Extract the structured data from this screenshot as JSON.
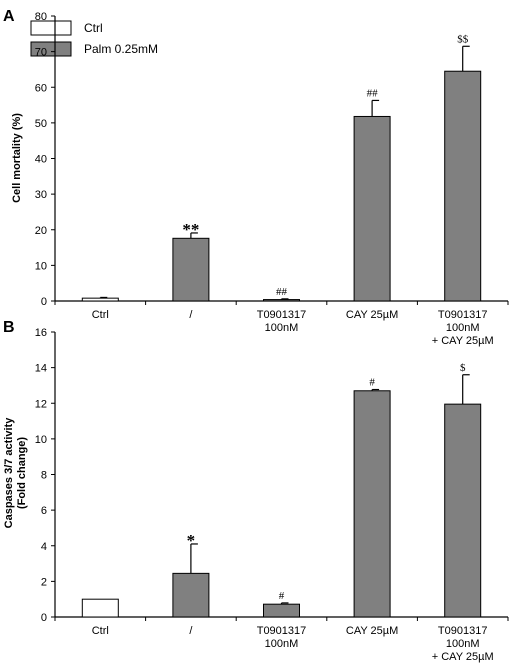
{
  "legend": {
    "items": [
      {
        "label": "Ctrl",
        "color": "#ffffff"
      },
      {
        "label": "Palm 0.25mM",
        "color": "#808080"
      }
    ]
  },
  "chart_data": [
    {
      "type": "bar",
      "panel": "A",
      "ylabel": "Cell mortality (%)",
      "ylim": [
        0,
        80
      ],
      "yticks": [
        0,
        10,
        20,
        30,
        40,
        50,
        60,
        70,
        80
      ],
      "categories": [
        [
          "Ctrl"
        ],
        [
          "/"
        ],
        [
          "T0901317",
          "100nM"
        ],
        [
          "CAY 25µM"
        ],
        [
          "T0901317",
          "100nM",
          "+ CAY 25µM"
        ]
      ],
      "values": [
        0.8,
        17.6,
        0.4,
        51.8,
        64.5
      ],
      "errors": [
        0.2,
        1.5,
        0.2,
        4.5,
        7.0
      ],
      "bar_colors": [
        "#ffffff",
        "#808080",
        "#808080",
        "#808080",
        "#808080"
      ],
      "annotations": [
        "",
        "**",
        "##",
        "##",
        "$$"
      ]
    },
    {
      "type": "bar",
      "panel": "B",
      "ylabel": [
        "Caspases 3/7 activity",
        "(Fold change)"
      ],
      "ylim": [
        0,
        16
      ],
      "yticks": [
        0,
        2,
        4,
        6,
        8,
        10,
        12,
        14,
        16
      ],
      "categories": [
        [
          "Ctrl"
        ],
        [
          "/"
        ],
        [
          "T0901317",
          "100nM"
        ],
        [
          "CAY 25µM"
        ],
        [
          "T0901317",
          "100nM",
          "+ CAY 25µM"
        ]
      ],
      "values": [
        1.0,
        2.45,
        0.72,
        12.7,
        11.95
      ],
      "errors": [
        0.0,
        1.65,
        0.07,
        0.07,
        1.65
      ],
      "bar_colors": [
        "#ffffff",
        "#808080",
        "#808080",
        "#808080",
        "#808080"
      ],
      "annotations": [
        "",
        "*",
        "#",
        "#",
        "$"
      ]
    }
  ]
}
